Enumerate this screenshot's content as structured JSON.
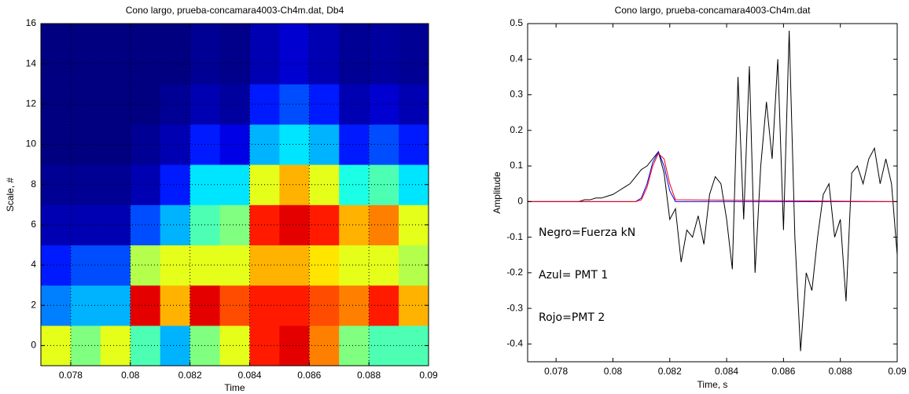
{
  "chart_data": [
    {
      "type": "heatmap",
      "title": "Cono largo, prueba-concamara4003-Ch4m.dat, Db4",
      "y_label": "Scale, #",
      "x_label": "Time",
      "xlim": [
        0.077,
        0.09
      ],
      "xticks": [
        0.078,
        0.08,
        0.082,
        0.084,
        0.086,
        0.088,
        0.09
      ],
      "ylim": [
        -1,
        16
      ],
      "yticks": [
        0,
        2,
        4,
        6,
        8,
        10,
        12,
        14,
        16
      ],
      "grid": true,
      "colormap": "jet",
      "x_edges": [
        0.077,
        0.078,
        0.079,
        0.08,
        0.081,
        0.082,
        0.083,
        0.084,
        0.085,
        0.086,
        0.087,
        0.088,
        0.089,
        0.09
      ],
      "y_edges": [
        -1,
        1,
        3,
        5,
        7,
        9,
        11,
        13,
        16
      ],
      "z": [
        [
          0.6,
          0.5,
          0.6,
          0.45,
          0.3,
          0.5,
          0.6,
          0.85,
          0.9,
          0.75,
          0.5,
          0.45,
          0.45
        ],
        [
          0.25,
          0.3,
          0.3,
          0.9,
          0.7,
          0.9,
          0.8,
          0.85,
          0.85,
          0.8,
          0.75,
          0.85,
          0.7
        ],
        [
          0.15,
          0.2,
          0.2,
          0.55,
          0.6,
          0.6,
          0.6,
          0.7,
          0.7,
          0.65,
          0.6,
          0.6,
          0.55
        ],
        [
          0.05,
          0.05,
          0.05,
          0.2,
          0.3,
          0.45,
          0.5,
          0.85,
          0.9,
          0.85,
          0.7,
          0.75,
          0.6
        ],
        [
          0.02,
          0.02,
          0.02,
          0.05,
          0.15,
          0.35,
          0.35,
          0.6,
          0.7,
          0.6,
          0.4,
          0.45,
          0.35
        ],
        [
          0,
          0,
          0,
          0.02,
          0.05,
          0.15,
          0.1,
          0.3,
          0.35,
          0.3,
          0.15,
          0.2,
          0.15
        ],
        [
          0,
          0,
          0,
          0,
          0.02,
          0.05,
          0.03,
          0.15,
          0.2,
          0.15,
          0.05,
          0.08,
          0.05
        ],
        [
          0,
          0,
          0,
          0,
          0,
          0.02,
          0.01,
          0.05,
          0.08,
          0.05,
          0.02,
          0.03,
          0.02
        ]
      ]
    },
    {
      "type": "line",
      "title": "Cono largo, prueba-concamara4003-Ch4m.dat",
      "y_label": "Amplitude",
      "x_label": "Time, s",
      "xlim": [
        0.077,
        0.09
      ],
      "xticks": [
        0.078,
        0.08,
        0.082,
        0.084,
        0.086,
        0.088,
        0.09
      ],
      "ylim": [
        -0.45,
        0.5
      ],
      "yticks": [
        -0.4,
        -0.3,
        -0.2,
        -0.1,
        0,
        0.1,
        0.2,
        0.3,
        0.4,
        0.5
      ],
      "grid": false,
      "annotations": [
        "Negro=Fuerza kN",
        "Azul= PMT 1",
        "Rojo=PMT 2"
      ],
      "series": [
        {
          "color": "#000000",
          "x": [
            0.077,
            0.0772,
            0.0774,
            0.0776,
            0.0778,
            0.078,
            0.0782,
            0.0784,
            0.0786,
            0.0788,
            0.079,
            0.0792,
            0.0794,
            0.0796,
            0.0798,
            0.08,
            0.0802,
            0.0804,
            0.0806,
            0.0808,
            0.081,
            0.0812,
            0.0814,
            0.0816,
            0.0818,
            0.082,
            0.0822,
            0.0824,
            0.0826,
            0.0828,
            0.083,
            0.0832,
            0.0834,
            0.0836,
            0.0838,
            0.084,
            0.0842,
            0.0844,
            0.0846,
            0.0848,
            0.085,
            0.0852,
            0.0854,
            0.0856,
            0.0858,
            0.086,
            0.0862,
            0.0864,
            0.0866,
            0.0868,
            0.087,
            0.0872,
            0.0874,
            0.0876,
            0.0878,
            0.088,
            0.0882,
            0.0884,
            0.0886,
            0.0888,
            0.089,
            0.0892,
            0.0894,
            0.0896,
            0.0898,
            0.09
          ],
          "values": [
            0,
            0,
            0,
            0,
            0,
            0,
            0,
            0,
            0,
            0,
            0.005,
            0.005,
            0.01,
            0.01,
            0.015,
            0.02,
            0.03,
            0.04,
            0.05,
            0.07,
            0.09,
            0.1,
            0.12,
            0.14,
            0.08,
            -0.05,
            -0.02,
            -0.17,
            -0.08,
            -0.1,
            -0.04,
            -0.12,
            0.02,
            0.07,
            0.05,
            -0.05,
            -0.19,
            0.35,
            -0.05,
            0.38,
            -0.2,
            0.1,
            0.28,
            0.12,
            0.4,
            -0.08,
            0.48,
            -0.1,
            -0.42,
            -0.2,
            -0.25,
            -0.1,
            0.02,
            0.05,
            -0.1,
            -0.05,
            -0.28,
            0.08,
            0.1,
            0.05,
            0.12,
            0.15,
            0.05,
            0.12,
            0.05,
            -0.15
          ]
        },
        {
          "color": "#0000ff",
          "x": [
            0.077,
            0.0808,
            0.081,
            0.0812,
            0.0814,
            0.0816,
            0.0818,
            0.082,
            0.0822,
            0.09
          ],
          "values": [
            0,
            0,
            0.01,
            0.05,
            0.11,
            0.14,
            0.1,
            0.03,
            0,
            0
          ]
        },
        {
          "color": "#ff0000",
          "x": [
            0.077,
            0.0808,
            0.081,
            0.0812,
            0.0814,
            0.0816,
            0.0818,
            0.082,
            0.0822,
            0.09
          ],
          "values": [
            0,
            0,
            0.005,
            0.04,
            0.1,
            0.135,
            0.12,
            0.05,
            0.005,
            0
          ]
        }
      ]
    }
  ]
}
